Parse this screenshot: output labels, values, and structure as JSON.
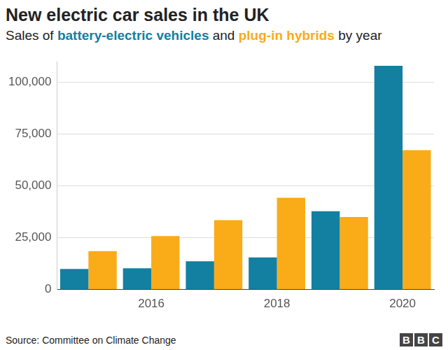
{
  "chart_data": {
    "type": "bar",
    "title": "New electric car sales in the UK",
    "subtitle": "Sales of battery-electric vehicles and plug-in hybrids by year",
    "source": "Source: Committee on Climate Change",
    "credit": "BBC",
    "categories": [
      null,
      "2016",
      null,
      "2018",
      null,
      "2020"
    ],
    "series": [
      {
        "name": "battery-electric vehicles",
        "color": "#1380a1",
        "values": [
          9900,
          10300,
          13600,
          15500,
          37800,
          108000
        ]
      },
      {
        "name": "plug-in hybrids",
        "color": "#faab18",
        "values": [
          18500,
          25800,
          33500,
          44300,
          35000,
          67300
        ]
      }
    ],
    "ylim": [
      0,
      110000
    ],
    "yticks": [
      0,
      {
        "value": 25000,
        "label": "25,000"
      },
      {
        "value": 50000,
        "label": "50,000"
      },
      {
        "value": 75000,
        "label": "75,000"
      },
      {
        "value": 100000,
        "label": "100,000"
      }
    ],
    "grid": true
  }
}
